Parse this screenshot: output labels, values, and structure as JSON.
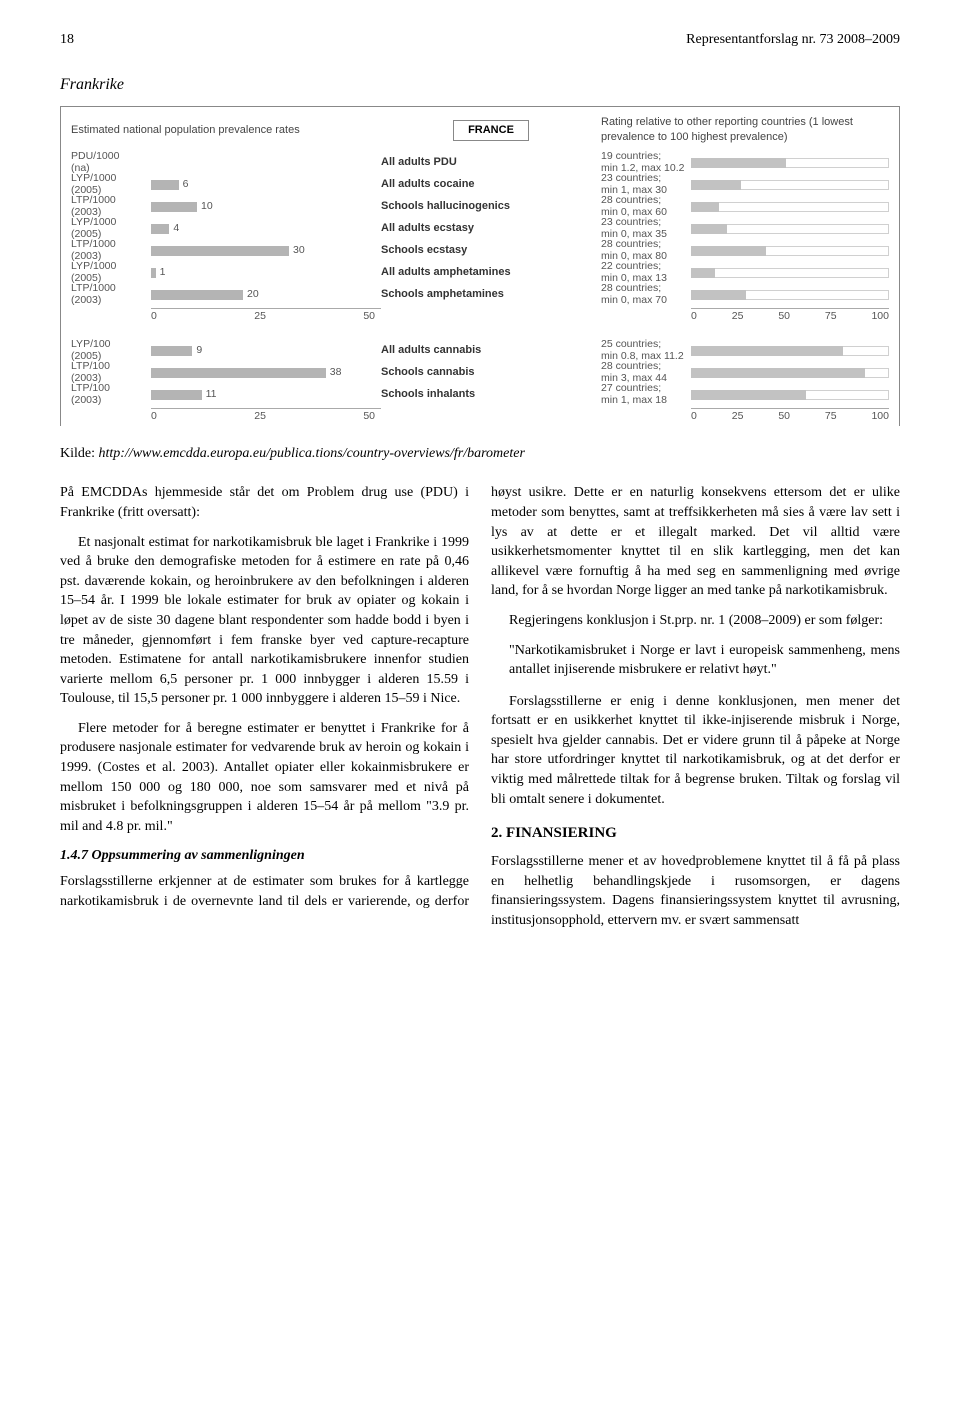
{
  "header": {
    "page_no": "18",
    "doc_title": "Representantforslag nr. 73 2008–2009"
  },
  "section_title": "Frankrike",
  "chart": {
    "head_left": "Estimated national population prevalence rates",
    "country_box": "FRANCE",
    "head_right": "Rating relative to other reporting countries (1 lowest prevalence to 100 highest prevalence)",
    "left_axis_max": 50,
    "left_axis_ticks": [
      "0",
      "25",
      "50"
    ],
    "right_axis_ticks": [
      "0",
      "25",
      "50",
      "75",
      "100"
    ],
    "bar_color_left": "#b4b4b4",
    "bar_color_right": "#c2c2c2",
    "blocks": [
      {
        "rows": [
          {
            "left_label": "PDU/1000\n(na)",
            "left_val": null,
            "mid": "All adults PDU",
            "right_label": "19 countries;\nmin 1.2, max 10.2",
            "right_pct": 48
          },
          {
            "left_label": "LYP/1000\n(2005)",
            "left_val": 6,
            "mid": "All adults cocaine",
            "right_label": "23 countries;\nmin 1, max 30",
            "right_pct": 25
          },
          {
            "left_label": "LTP/1000\n(2003)",
            "left_val": 10,
            "mid": "Schools hallucinogenics",
            "right_label": "28 countries;\nmin 0, max 60",
            "right_pct": 14
          },
          {
            "left_label": "LYP/1000\n(2005)",
            "left_val": 4,
            "mid": "All adults ecstasy",
            "right_label": "23 countries;\nmin 0, max 35",
            "right_pct": 18
          },
          {
            "left_label": "LTP/1000\n(2003)",
            "left_val": 30,
            "mid": "Schools ecstasy",
            "right_label": "28 countries;\nmin 0, max 80",
            "right_pct": 38
          },
          {
            "left_label": "LYP/1000\n(2005)",
            "left_val": 1,
            "mid": "All adults amphetamines",
            "right_label": "22 countries;\nmin 0, max 13",
            "right_pct": 12
          },
          {
            "left_label": "LTP/1000\n(2003)",
            "left_val": 20,
            "mid": "Schools amphetamines",
            "right_label": "28 countries;\nmin 0, max 70",
            "right_pct": 28
          }
        ]
      },
      {
        "rows": [
          {
            "left_label": "LYP/100\n(2005)",
            "left_val": 9,
            "mid": "All adults cannabis",
            "right_label": "25 countries;\nmin 0.8, max 11.2",
            "right_pct": 77
          },
          {
            "left_label": "LTP/100\n(2003)",
            "left_val": 38,
            "mid": "Schools cannabis",
            "right_label": "28 countries;\nmin 3, max 44",
            "right_pct": 88
          },
          {
            "left_label": "LTP/100\n(2003)",
            "left_val": 11,
            "mid": "Schools inhalants",
            "right_label": "27 countries;\nmin 1, max 18",
            "right_pct": 58
          }
        ]
      }
    ]
  },
  "source": {
    "label": "Kilde:",
    "url": "http://www.emcdda.europa.eu/publica.tions/country-overviews/fr/barometer"
  },
  "body": {
    "p1": "På EMCDDAs hjemmeside står det om Problem drug use (PDU) i Frankrike (fritt oversatt):",
    "p2": "Et nasjonalt estimat for narkotikamisbruk ble laget i Frankrike i 1999 ved å bruke den demografiske metoden for å estimere en rate på 0,46 pst. daværende kokain, og heroinbrukere av den befolkningen i alderen 15–54 år. I 1999 ble lokale estimater for bruk av opiater og kokain i løpet av de siste 30 dagene blant respondenter som hadde bodd i byen i tre måneder, gjennomført i fem franske byer ved capture-recapture metoden. Estimatene for antall narkotikamisbrukere innenfor studien varierte mellom 6,5 personer pr. 1 000 innbygger i alderen 15.59 i Toulouse, til 15,5 personer pr. 1 000 innbyggere i alderen 15–59 i Nice.",
    "p3": "Flere metoder for å beregne estimater er benyttet i Frankrike for å produsere nasjonale estimater for vedvarende bruk av heroin og kokain i 1999. (Costes et al. 2003). Antallet opiater eller kokainmisbrukere er mellom 150 000 og 180 000, noe som samsvarer med et nivå på misbruket i befolkningsgruppen i alderen 15–54 år på mellom \"3.9 pr. mil and 4.8 pr. mil.\"",
    "h147": "1.4.7 Oppsummering av sammenligningen",
    "p4": "Forslagsstillerne erkjenner at de estimater som brukes for å kartlegge narkotikamisbruk i de overnevnte land til dels er varierende, og derfor høyst usikre. Dette er en naturlig konsekvens ettersom det er ulike metoder som benyttes, samt at treffsikkerheten må sies å være lav sett i lys av at dette er et illegalt marked. Det vil alltid være usikkerhetsmomenter knyttet til en slik kartlegging, men det kan allikevel være fornuftig å ha med seg en sammenligning med øvrige land, for å se hvordan Norge ligger an med tanke på narkotikamisbruk.",
    "p5": "Regjeringens konklusjon i St.prp. nr. 1 (2008–2009) er som følger:",
    "quote": "\"Narkotikamisbruket i Norge er lavt i europeisk sammenheng, mens antallet injiserende misbrukere er relativt høyt.\"",
    "p6": "Forslagsstillerne er enig i denne konklusjonen, men mener det fortsatt er en usikkerhet knyttet til ikke-injiserende misbruk i Norge, spesielt hva gjelder cannabis. Det er videre grunn til å påpeke at Norge har store utfordringer knyttet til narkotikamisbruk, og at det derfor er viktig med målrettede tiltak for å begrense bruken. Tiltak og forslag vil bli omtalt senere i dokumentet.",
    "h2": "2.   FINANSIERING",
    "p7": "Forslagsstillerne mener et av hovedproblemene knyttet til å få på plass en helhetlig behandlingskjede i rusomsorgen, er dagens finansieringssystem. Dagens finansieringssystem knyttet til avrusning, institusjonsopphold, ettervern mv. er svært sammensatt"
  }
}
